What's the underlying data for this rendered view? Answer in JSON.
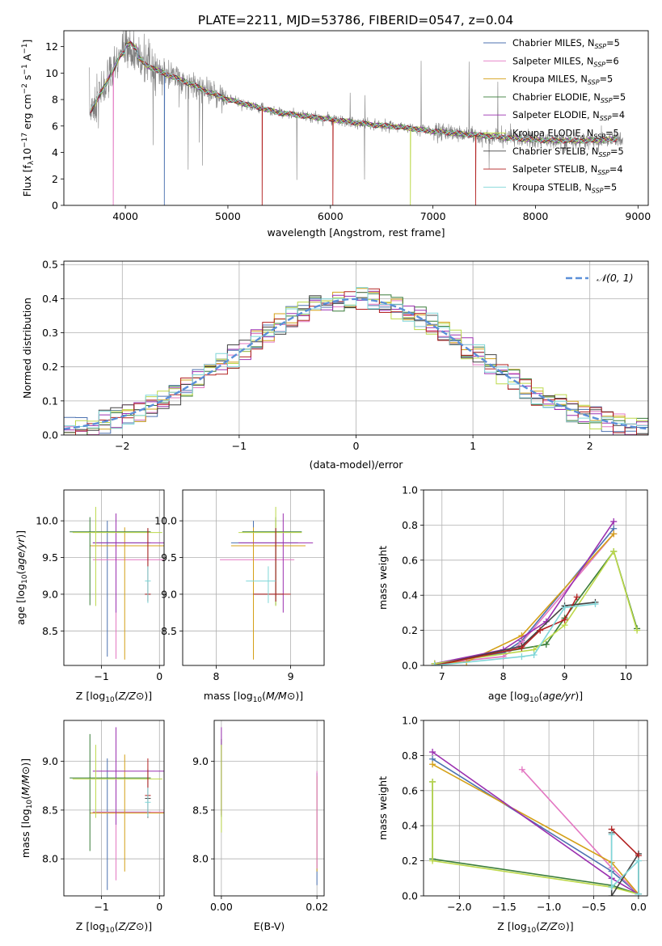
{
  "figure_title": "PLATE=2211, MJD=53786, FIBERID=0547, z=0.04",
  "colors": [
    "#4c72b0",
    "#e377c2",
    "#d4a017",
    "#3a7d3a",
    "#9b30b0",
    "#bcd84a",
    "#444444",
    "#b22222",
    "#7fd6d8"
  ],
  "chart_data": [
    {
      "id": "spectrum",
      "type": "line",
      "title": "PLATE=2211, MJD=53786, FIBERID=0547, z=0.04",
      "xlabel": "wavelength [Angstrom, rest frame]",
      "ylabel": "Flux [f_λ 10^-17 erg cm^-2 s^-1 A^-1]",
      "xlim": [
        3400,
        9100
      ],
      "ylim": [
        0,
        13.2
      ],
      "xticks": [
        4000,
        5000,
        6000,
        7000,
        8000,
        9000
      ],
      "yticks": [
        0,
        2,
        4,
        6,
        8,
        10,
        12
      ],
      "grid": false,
      "legend_position": "upper right",
      "legend": [
        {
          "label": "Chabrier MILES, N",
          "sub": "SSP",
          "tail": "=5"
        },
        {
          "label": "Salpeter MILES, N",
          "sub": "SSP",
          "tail": "=6"
        },
        {
          "label": "Kroupa MILES, N",
          "sub": "SSP",
          "tail": "=5"
        },
        {
          "label": "Chabrier ELODIE, N",
          "sub": "SSP",
          "tail": "=5"
        },
        {
          "label": "Salpeter ELODIE, N",
          "sub": "SSP",
          "tail": "=4"
        },
        {
          "label": "Kroupa ELODIE, N",
          "sub": "SSP",
          "tail": "=5"
        },
        {
          "label": "Chabrier STELIB, N",
          "sub": "SSP",
          "tail": "=5"
        },
        {
          "label": "Salpeter STELIB, N",
          "sub": "SSP",
          "tail": "=4"
        },
        {
          "label": "Kroupa STELIB, N",
          "sub": "SSP",
          "tail": "=5"
        }
      ],
      "data_color": "#808080",
      "continuum": {
        "x": [
          3650,
          3800,
          3950,
          4050,
          4200,
          4400,
          4600,
          4800,
          5000,
          5200,
          5500,
          5800,
          6100,
          6400,
          6700,
          7000,
          7300,
          7600,
          7900,
          8200,
          8500,
          8800
        ],
        "y": [
          7.0,
          9.0,
          11.3,
          11.8,
          10.6,
          9.9,
          9.3,
          8.6,
          8.0,
          7.6,
          7.0,
          6.7,
          6.4,
          6.1,
          5.9,
          5.6,
          5.4,
          5.2,
          5.0,
          4.9,
          4.9,
          5.0
        ]
      }
    },
    {
      "id": "residuals",
      "type": "step",
      "xlabel": "(data-model)/error",
      "ylabel": "Normed distribution",
      "xlim": [
        -2.5,
        2.5
      ],
      "ylim": [
        0,
        0.51
      ],
      "xticks": [
        -2,
        -1,
        0,
        1,
        2
      ],
      "yticks": [
        0.0,
        0.1,
        0.2,
        0.3,
        0.4,
        0.5
      ],
      "grid": true,
      "legend_position": "upper right",
      "legend": [
        "𝒩(0, 1)"
      ],
      "bin_width": 0.1
    },
    {
      "id": "age-vs-Z",
      "type": "errorbar",
      "xlabel": "Z [log10(Z/Z⊙)]",
      "ylabel": "age  [log10(age/yr)]",
      "xlim": [
        -1.65,
        0.08
      ],
      "ylim": [
        8.03,
        10.42
      ],
      "xticks": [
        -1,
        0
      ],
      "yticks": [
        8.5,
        9.0,
        9.5,
        10.0
      ],
      "grid": true,
      "points": [
        {
          "x": -0.9,
          "xerr": [
            0.25,
            0.75
          ],
          "y": 9.7,
          "yerr": [
            1.55,
            0.3
          ]
        },
        {
          "x": -0.75,
          "xerr": [
            0.4,
            0.9
          ],
          "y": 9.47,
          "yerr": [
            1.35,
            0.3
          ]
        },
        {
          "x": -0.6,
          "xerr": [
            0.6,
            0.7
          ],
          "y": 9.66,
          "yerr": [
            1.55,
            0.25
          ]
        },
        {
          "x": -1.2,
          "xerr": [
            0.35,
            1.05
          ],
          "y": 9.85,
          "yerr": [
            1.0,
            0.2
          ]
        },
        {
          "x": -0.75,
          "xerr": [
            0.4,
            0.85
          ],
          "y": 9.7,
          "yerr": [
            0.95,
            0.4
          ]
        },
        {
          "x": -1.1,
          "xerr": [
            0.4,
            1.15
          ],
          "y": 9.84,
          "yerr": [
            1.0,
            0.35
          ]
        },
        {
          "x": -0.2,
          "xerr": [
            0.05,
            0.05
          ],
          "y": 9.0,
          "yerr": [
            0.1,
            0.9
          ]
        },
        {
          "x": -0.2,
          "xerr": [
            0.05,
            0.05
          ],
          "y": 9.0,
          "yerr": [
            0.1,
            0.9
          ]
        },
        {
          "x": -0.2,
          "xerr": [
            0.05,
            0.05
          ],
          "y": 9.18,
          "yerr": [
            0.3,
            0.2
          ]
        }
      ]
    },
    {
      "id": "age-vs-mass",
      "type": "errorbar",
      "xlabel": "mass [log10(M/M⊙)]",
      "ylabel": "",
      "xlim": [
        7.55,
        9.45
      ],
      "ylim": [
        8.03,
        10.42
      ],
      "xticks": [
        8,
        9
      ],
      "yticks": [
        8.5,
        9.0,
        9.5,
        10.0
      ],
      "grid": true,
      "points": [
        {
          "x": 8.5,
          "xerr": [
            0.3,
            0.6
          ],
          "y": 9.7,
          "yerr": [
            1.55,
            0.3
          ]
        },
        {
          "x": 8.5,
          "xerr": [
            0.45,
            0.55
          ],
          "y": 9.47,
          "yerr": [
            1.35,
            0.3
          ]
        },
        {
          "x": 8.5,
          "xerr": [
            0.3,
            0.7
          ],
          "y": 9.66,
          "yerr": [
            1.55,
            0.25
          ]
        },
        {
          "x": 8.8,
          "xerr": [
            0.45,
            0.35
          ],
          "y": 9.85,
          "yerr": [
            1.0,
            0.2
          ]
        },
        {
          "x": 8.9,
          "xerr": [
            0.6,
            0.4
          ],
          "y": 9.7,
          "yerr": [
            0.95,
            0.4
          ]
        },
        {
          "x": 8.8,
          "xerr": [
            0.5,
            0.35
          ],
          "y": 9.84,
          "yerr": [
            1.0,
            0.35
          ]
        },
        {
          "x": 8.8,
          "xerr": [
            0.3,
            0.1
          ],
          "y": 9.0,
          "yerr": [
            0.1,
            0.9
          ]
        },
        {
          "x": 8.8,
          "xerr": [
            0.3,
            0.2
          ],
          "y": 9.0,
          "yerr": [
            0.1,
            0.9
          ]
        },
        {
          "x": 8.7,
          "xerr": [
            0.3,
            0.1
          ],
          "y": 9.18,
          "yerr": [
            0.3,
            0.2
          ]
        }
      ]
    },
    {
      "id": "weight-vs-age",
      "type": "line",
      "xlabel": "age  [log10(age/yr)]",
      "ylabel": "mass weight",
      "xlim": [
        6.7,
        10.35
      ],
      "ylim": [
        0,
        1.0
      ],
      "xticks": [
        7,
        8,
        9,
        10
      ],
      "yticks": [
        0.0,
        0.2,
        0.4,
        0.6,
        0.8,
        1.0
      ],
      "grid": true,
      "series": [
        {
          "x": [
            6.88,
            8.0,
            8.3,
            9.8
          ],
          "y": [
            0.01,
            0.07,
            0.14,
            0.78
          ]
        },
        {
          "x": [
            6.88,
            8.0,
            8.3,
            9.8
          ],
          "y": [
            0.01,
            0.05,
            0.13,
            0.75
          ]
        },
        {
          "x": [
            6.88,
            7.4,
            8.3,
            9.8
          ],
          "y": [
            0.01,
            0.02,
            0.17,
            0.75
          ]
        },
        {
          "x": [
            6.88,
            8.7,
            9.0,
            9.8,
            10.18
          ],
          "y": [
            0.01,
            0.12,
            0.27,
            0.65,
            0.21
          ]
        },
        {
          "x": [
            6.88,
            8.0,
            8.7,
            9.8
          ],
          "y": [
            0.01,
            0.09,
            0.25,
            0.82
          ]
        },
        {
          "x": [
            6.88,
            8.5,
            9.0,
            9.8,
            10.18
          ],
          "y": [
            0.01,
            0.09,
            0.23,
            0.65,
            0.2
          ]
        },
        {
          "x": [
            6.88,
            8.3,
            9.0,
            9.5
          ],
          "y": [
            0.0,
            0.11,
            0.34,
            0.36
          ]
        },
        {
          "x": [
            6.88,
            8.3,
            8.6,
            9.0,
            9.2
          ],
          "y": [
            0.0,
            0.1,
            0.2,
            0.26,
            0.39
          ]
        },
        {
          "x": [
            6.88,
            8.3,
            8.5,
            9.0,
            9.5
          ],
          "y": [
            0.0,
            0.05,
            0.06,
            0.33,
            0.35
          ]
        }
      ]
    },
    {
      "id": "mass-vs-Z",
      "type": "errorbar",
      "xlabel": "Z [log10(Z/Z⊙)]",
      "ylabel": "mass [log10(M/M⊙)]",
      "xlim": [
        -1.65,
        0.08
      ],
      "ylim": [
        7.62,
        9.42
      ],
      "xticks": [
        -1,
        0
      ],
      "yticks": [
        8.0,
        8.5,
        9.0
      ],
      "grid": true,
      "points": [
        {
          "x": -0.9,
          "xerr": [
            0.25,
            0.75
          ],
          "y": 8.48,
          "yerr": [
            0.8,
            0.55
          ]
        },
        {
          "x": -0.75,
          "xerr": [
            0.4,
            0.9
          ],
          "y": 8.48,
          "yerr": [
            0.7,
            0.55
          ]
        },
        {
          "x": -0.6,
          "xerr": [
            0.6,
            0.7
          ],
          "y": 8.47,
          "yerr": [
            0.6,
            0.6
          ]
        },
        {
          "x": -1.2,
          "xerr": [
            0.35,
            1.05
          ],
          "y": 8.83,
          "yerr": [
            0.75,
            0.45
          ]
        },
        {
          "x": -0.75,
          "xerr": [
            0.4,
            0.85
          ],
          "y": 8.9,
          "yerr": [
            0.55,
            0.45
          ]
        },
        {
          "x": -1.1,
          "xerr": [
            0.4,
            1.15
          ],
          "y": 8.82,
          "yerr": [
            0.4,
            0.35
          ]
        },
        {
          "x": -0.2,
          "xerr": [
            0.05,
            0.05
          ],
          "y": 8.62,
          "yerr": [
            0.2,
            0.3
          ]
        },
        {
          "x": -0.2,
          "xerr": [
            0.05,
            0.05
          ],
          "y": 8.65,
          "yerr": [
            0.2,
            0.38
          ]
        },
        {
          "x": -0.2,
          "xerr": [
            0.05,
            0.05
          ],
          "y": 8.58,
          "yerr": [
            0.15,
            0.15
          ]
        }
      ]
    },
    {
      "id": "mass-vs-EBV",
      "type": "errorbar",
      "xlabel": "E(B-V)",
      "ylabel": "",
      "xlim": [
        -0.0015,
        0.0215
      ],
      "ylim": [
        7.62,
        9.42
      ],
      "xticks": [
        0.0,
        0.02
      ],
      "xtick_labels": [
        "0.00",
        "0.02"
      ],
      "yticks": [
        8.0,
        8.5,
        9.0
      ],
      "grid": true,
      "points": [
        {
          "x": 0.0,
          "y": 8.83,
          "yerr": [
            0.4,
            0.4
          ]
        },
        {
          "x": 0.0,
          "y": 8.9,
          "yerr": [
            0.45,
            0.45
          ]
        },
        {
          "x": 0.0,
          "y": 8.82,
          "yerr": [
            0.55,
            0.35
          ]
        },
        {
          "x": 0.02,
          "y": 8.48,
          "yerr": [
            0.75,
            0.4
          ]
        },
        {
          "x": 0.02,
          "y": 8.47,
          "yerr": [
            0.6,
            0.38
          ]
        },
        {
          "x": 0.02,
          "y": 8.5,
          "yerr": [
            0.6,
            0.4
          ]
        }
      ]
    },
    {
      "id": "weight-vs-Z",
      "type": "line",
      "xlabel": "Z [log10(Z/Z⊙)]",
      "ylabel": "mass weight",
      "xlim": [
        -2.4,
        0.1
      ],
      "ylim": [
        0,
        1.0
      ],
      "xticks": [
        -2.0,
        -1.5,
        -1.0,
        -0.5,
        0.0
      ],
      "yticks": [
        0.0,
        0.2,
        0.4,
        0.6,
        0.8,
        1.0
      ],
      "grid": true,
      "series": [
        {
          "x": [
            -2.3,
            -0.3,
            0.0
          ],
          "y": [
            0.78,
            0.14,
            0.01
          ]
        },
        {
          "x": [
            -1.3,
            -0.3,
            0.0
          ],
          "y": [
            0.72,
            0.16,
            0.01
          ]
        },
        {
          "x": [
            -2.3,
            -0.3,
            0.0
          ],
          "y": [
            0.75,
            0.19,
            0.01
          ]
        },
        {
          "x": [
            -2.3,
            -2.3,
            -0.3,
            0.0
          ],
          "y": [
            0.65,
            0.21,
            0.06,
            0.01
          ]
        },
        {
          "x": [
            -2.3,
            -0.3,
            0.0
          ],
          "y": [
            0.82,
            0.1,
            0.01
          ]
        },
        {
          "x": [
            -2.3,
            -2.3,
            -0.3,
            0.0
          ],
          "y": [
            0.65,
            0.2,
            0.05,
            0.01
          ]
        },
        {
          "x": [
            -0.3,
            -0.3,
            0.0,
            0.0
          ],
          "y": [
            0.36,
            0.0,
            0.24,
            0.01
          ]
        },
        {
          "x": [
            -0.3,
            0.0
          ],
          "y": [
            0.38,
            0.23
          ]
        },
        {
          "x": [
            -0.3,
            -0.3,
            0.0,
            0.0
          ],
          "y": [
            0.35,
            0.05,
            0.2,
            0.01
          ]
        }
      ]
    }
  ]
}
